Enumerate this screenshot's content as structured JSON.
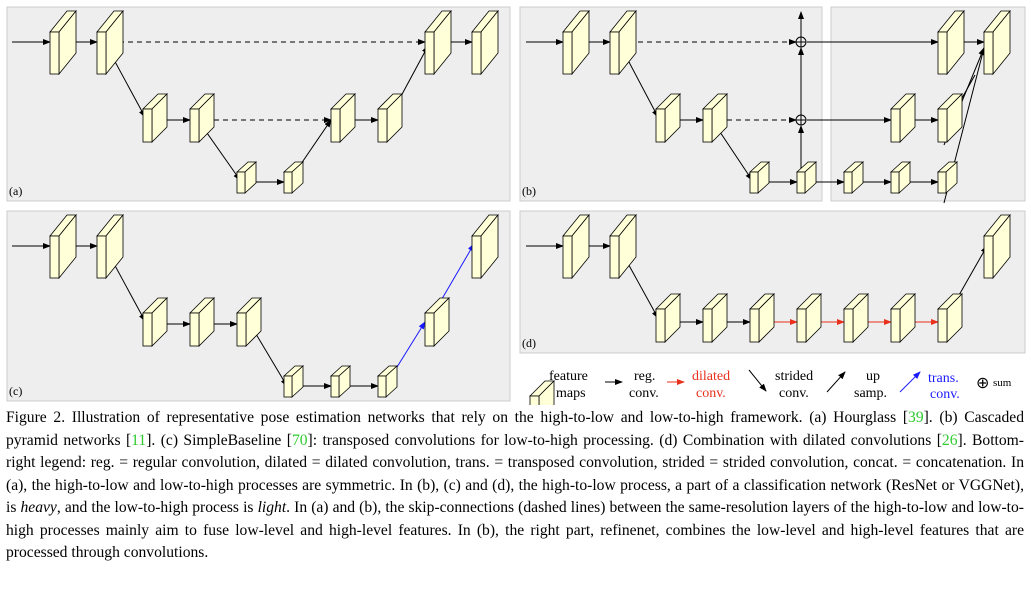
{
  "panels": {
    "a": {
      "label": "(a)"
    },
    "b": {
      "label": "(b)"
    },
    "c": {
      "label": "(c)"
    },
    "d": {
      "label": "(d)"
    }
  },
  "colors": {
    "panel_bg": "#eeeeee",
    "feature_map": "#ffffd8",
    "regular_conv": "#000000",
    "dilated_conv": "#e8301c",
    "transposed_conv": "#1a1aff",
    "reference": "#2ecc2e"
  },
  "legend": {
    "feature_maps": [
      "feature",
      "maps"
    ],
    "reg_conv": [
      "reg.",
      "conv."
    ],
    "dilated_conv": [
      "dilated",
      "conv."
    ],
    "strided_conv": [
      "strided",
      "conv."
    ],
    "up_samp": [
      "up",
      "samp."
    ],
    "trans_conv": [
      "trans.",
      "conv."
    ],
    "sum_symbol": "⊕",
    "sum": "sum"
  },
  "caption": [
    {
      "text": "Figure 2. Illustration of representative pose estimation networks that rely on the high-to-low and low-to-high framework. (a) Hourglass [",
      "style": "normal"
    },
    {
      "text": "39",
      "style": "ref"
    },
    {
      "text": "]. (b) Cascaded pyramid networks [",
      "style": "normal"
    },
    {
      "text": "11",
      "style": "ref"
    },
    {
      "text": "]. (c) SimpleBaseline [",
      "style": "normal"
    },
    {
      "text": "70",
      "style": "ref"
    },
    {
      "text": "]: transposed convolutions for low-to-high processing. (d) Combination with dilated convolutions [",
      "style": "normal"
    },
    {
      "text": "26",
      "style": "ref"
    },
    {
      "text": "]. Bottom-right legend: reg. = regular convolution, dilated = dilated convolution, trans. = transposed convolution, strided = strided convolution, concat. = concatenation. In (a), the high-to-low and low-to-high processes are symmetric. In (b), (c) and (d), the high-to-low process, a part of a classification network (ResNet or VGGNet), is ",
      "style": "normal"
    },
    {
      "text": "heavy",
      "style": "italic"
    },
    {
      "text": ", and the low-to-high process is ",
      "style": "normal"
    },
    {
      "text": "light",
      "style": "italic"
    },
    {
      "text": ". In (a) and (b), the skip-connections (dashed lines) between the same-resolution layers of the high-to-low and low-to-high processes mainly aim to fuse low-level and high-level features. In (b), the right part, refinenet, combines the low-level and high-level features that are processed through convolutions.",
      "style": "normal"
    }
  ]
}
